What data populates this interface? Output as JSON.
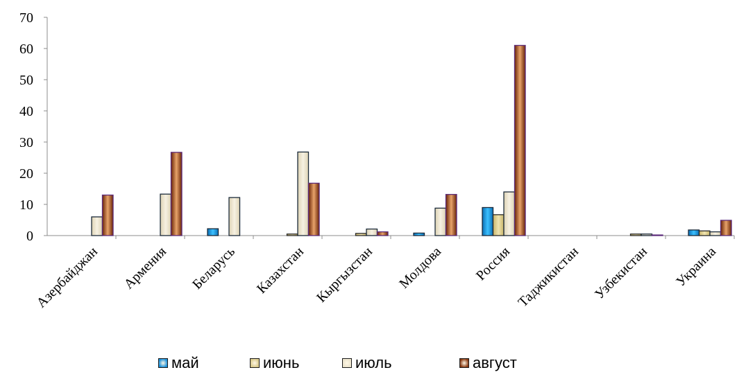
{
  "chart_data": {
    "type": "bar",
    "categories": [
      "Азербайджан",
      "Армения",
      "Беларусь",
      "Казахстан",
      "Кыргызстан",
      "Молдова",
      "Россия",
      "Таджикистан",
      "Узбекистан",
      "Украина"
    ],
    "series": [
      {
        "name": "май",
        "values": [
          0,
          0,
          2.2,
          0,
          0,
          0.8,
          9,
          0,
          0,
          1.8
        ],
        "color": "#1a8fd8"
      },
      {
        "name": "июнь",
        "values": [
          0,
          0,
          0,
          0.5,
          0.7,
          0,
          6.7,
          0,
          0.5,
          1.5
        ],
        "color": "#d9c98a"
      },
      {
        "name": "июль",
        "values": [
          6,
          13.3,
          12.2,
          26.8,
          2.1,
          8.8,
          14,
          0,
          0.5,
          1.2
        ],
        "color": "#ece4cc"
      },
      {
        "name": "август",
        "values": [
          13,
          26.7,
          0,
          16.8,
          1.2,
          13.2,
          61,
          0,
          0.2,
          4.9
        ],
        "color": "#8a3a12"
      }
    ],
    "ylim": [
      0,
      70
    ],
    "yticks": [
      0,
      10,
      20,
      30,
      40,
      50,
      60,
      70
    ],
    "legend_position": "bottom",
    "grid": false
  }
}
